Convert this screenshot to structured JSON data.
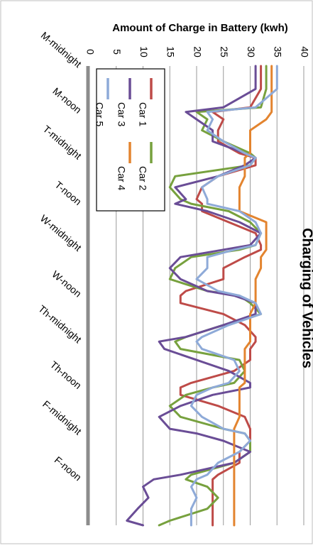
{
  "chart_data": {
    "type": "line",
    "title": "Charging of Vehicles",
    "ylabel": "Amount of Charge in Battery (kwh)",
    "ylim": [
      0,
      40
    ],
    "yticks": [
      0,
      5,
      10,
      15,
      20,
      25,
      30,
      35,
      40
    ],
    "xlim": [
      0,
      5
    ],
    "grid": true,
    "legend": "top-left",
    "categories": [
      "M-midnight",
      "M-noon",
      "T-midnight",
      "T-noon",
      "W-midnight",
      "W-noon",
      "Th-midnight",
      "Th-noon",
      "F-midnight",
      "F-noon"
    ],
    "x": [
      0,
      0.25,
      0.45,
      0.5,
      0.58,
      0.7,
      0.82,
      0.95,
      1.0,
      1.08,
      1.2,
      1.32,
      1.45,
      1.5,
      1.58,
      1.7,
      1.82,
      1.95,
      2.0,
      2.08,
      2.2,
      2.32,
      2.45,
      2.5,
      2.58,
      2.7,
      2.82,
      2.95,
      3.0,
      3.08,
      3.2,
      3.32,
      3.45,
      3.5,
      3.58,
      3.7,
      3.82,
      3.95,
      4.0,
      4.08,
      4.2,
      4.32,
      4.45,
      4.5,
      4.58,
      4.7,
      4.82,
      4.95,
      5.0
    ],
    "series": [
      {
        "name": "Car 1",
        "color": "#be4b48",
        "values": [
          32,
          32,
          30,
          23,
          25,
          24,
          24,
          28,
          31,
          31,
          24,
          21,
          20,
          21,
          21,
          26,
          31,
          32,
          32,
          29,
          25,
          25,
          18,
          17,
          17,
          25,
          29,
          31,
          31,
          30,
          30,
          27,
          19,
          17,
          17,
          24,
          29,
          30,
          30,
          30,
          28,
          28,
          24,
          23,
          23,
          23,
          23,
          23,
          23
        ]
      },
      {
        "name": "Car 2",
        "color": "#77a13e",
        "values": [
          33,
          33,
          32,
          20,
          22,
          21,
          25,
          30,
          31,
          30,
          16,
          15,
          17,
          19,
          26,
          30,
          32,
          31,
          28,
          19,
          16,
          15,
          22,
          28,
          30,
          32,
          25,
          18,
          16,
          17,
          28,
          29,
          27,
          23,
          18,
          15,
          17,
          25,
          29,
          30,
          30,
          27,
          19,
          18,
          22,
          24,
          22,
          15,
          13
        ]
      },
      {
        "name": "Car 3",
        "color": "#6a4d96",
        "values": [
          31,
          31,
          25,
          18,
          20,
          23,
          23,
          29,
          31,
          29,
          24,
          16,
          18,
          16,
          22,
          28,
          32,
          30,
          25,
          17,
          15,
          17,
          22,
          27,
          31,
          31,
          25,
          18,
          13,
          14,
          20,
          26,
          30,
          30,
          23,
          17,
          13,
          15,
          20,
          25,
          30,
          27,
          17,
          12,
          10,
          11,
          9,
          7,
          10
        ]
      },
      {
        "name": "Car 4",
        "color": "#e3842f",
        "values": [
          34,
          34,
          34,
          34,
          33,
          30,
          30,
          30,
          29,
          29,
          29,
          28,
          28,
          28,
          28,
          33,
          33,
          33,
          33,
          32,
          32,
          31,
          31,
          31,
          31,
          30,
          30,
          30,
          30,
          29,
          29,
          29,
          29,
          28,
          28,
          28,
          28,
          27,
          27,
          27,
          27,
          27,
          27,
          27,
          27,
          27,
          27,
          27,
          27
        ]
      },
      {
        "name": "Car 5",
        "color": "#8eaad8",
        "values": [
          35,
          35,
          31,
          22,
          23,
          22,
          25,
          29,
          31,
          30,
          24,
          21,
          22,
          22,
          28,
          31,
          32,
          31,
          27,
          22,
          22,
          20,
          24,
          28,
          31,
          32,
          26,
          21,
          20,
          21,
          27,
          28,
          26,
          23,
          20,
          19,
          21,
          25,
          29,
          30,
          28,
          24,
          22,
          20,
          19,
          20,
          19,
          19,
          19
        ]
      }
    ]
  }
}
